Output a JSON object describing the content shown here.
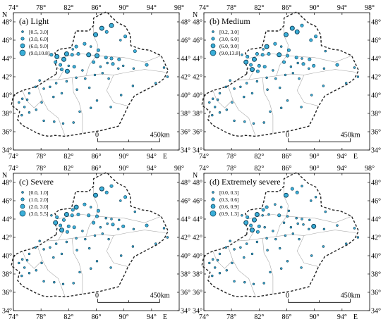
{
  "colors": {
    "dot_fill": "#3aaed8",
    "dot_stroke": "#0d3f57",
    "outline": "#222222",
    "province_line": "#aaaaaa",
    "frame": "#000000"
  },
  "axis": {
    "north_label": "N",
    "east_label": "E",
    "top_ticks": [
      "74°",
      "78°",
      "82°",
      "86°",
      "90°",
      "94°",
      "98°"
    ],
    "bottom_ticks": [
      "74°",
      "78°",
      "82°",
      "86°",
      "90°",
      "94°"
    ],
    "lat_ticks": [
      "48°",
      "46°",
      "44°",
      "42°",
      "40°",
      "38°",
      "36°",
      "34°"
    ]
  },
  "panels": [
    {
      "title": "(a) Light",
      "legend": [
        "[0.5, 3.0]",
        "(3.0, 6.0]",
        "(6.0, 9.0]",
        "(9.0,10.8]"
      ],
      "scale_start": "0",
      "scale_end": "450km"
    },
    {
      "title": "(b) Medium",
      "legend": [
        "[0.2, 3.0]",
        "(3.0, 6.0]",
        "(6.0, 9.0]",
        "(9.0,13.8]"
      ],
      "scale_start": "0",
      "scale_end": "450km"
    },
    {
      "title": "(c) Severe",
      "legend": [
        "[0.0, 1.0]",
        "(1.0, 2.0]",
        "(2.0, 3.0]",
        "(3.0, 5.5]"
      ],
      "scale_start": "0",
      "scale_end": "450km"
    },
    {
      "title": "(d) Extremely severe",
      "legend": [
        "[0.0, 0.3]",
        "(0.3, 0.6]",
        "(0.6, 0.9]",
        "(0.9, 1.3]"
      ],
      "scale_start": "0",
      "scale_end": "450km"
    }
  ],
  "stations": [
    {
      "lon": 86.8,
      "lat": 47.3,
      "c": [
        3,
        3,
        3,
        2
      ]
    },
    {
      "lon": 85.9,
      "lat": 46.6,
      "c": [
        3,
        3,
        3,
        3
      ]
    },
    {
      "lon": 87.5,
      "lat": 46.9,
      "c": [
        2,
        3,
        2,
        2
      ]
    },
    {
      "lon": 88.2,
      "lat": 47.6,
      "c": [
        3,
        2,
        2,
        1
      ]
    },
    {
      "lon": 90.2,
      "lat": 46.4,
      "c": [
        2,
        2,
        2,
        1
      ]
    },
    {
      "lon": 89.5,
      "lat": 46.0,
      "c": [
        1,
        2,
        1,
        1
      ]
    },
    {
      "lon": 84.3,
      "lat": 45.6,
      "c": [
        2,
        2,
        2,
        1
      ]
    },
    {
      "lon": 83.1,
      "lat": 45.3,
      "c": [
        2,
        3,
        3,
        2
      ]
    },
    {
      "lon": 85.2,
      "lat": 45.3,
      "c": [
        1,
        1,
        1,
        1
      ]
    },
    {
      "lon": 82.6,
      "lat": 45.0,
      "c": [
        1,
        1,
        2,
        2
      ]
    },
    {
      "lon": 86.3,
      "lat": 44.9,
      "c": [
        2,
        2,
        2,
        1
      ]
    },
    {
      "lon": 91.6,
      "lat": 44.8,
      "c": [
        2,
        1,
        1,
        1
      ]
    },
    {
      "lon": 79.5,
      "lat": 44.4,
      "c": [
        2,
        1,
        1,
        1
      ]
    },
    {
      "lon": 80.3,
      "lat": 44.2,
      "c": [
        3,
        2,
        2,
        2
      ]
    },
    {
      "lon": 81.7,
      "lat": 44.5,
      "c": [
        3,
        2,
        3,
        3
      ]
    },
    {
      "lon": 82.5,
      "lat": 44.4,
      "c": [
        2,
        2,
        2,
        1
      ]
    },
    {
      "lon": 83.4,
      "lat": 44.5,
      "c": [
        2,
        2,
        2,
        1
      ]
    },
    {
      "lon": 84.9,
      "lat": 44.4,
      "c": [
        3,
        3,
        2,
        2
      ]
    },
    {
      "lon": 86.1,
      "lat": 44.3,
      "c": [
        3,
        2,
        2,
        1
      ]
    },
    {
      "lon": 87.4,
      "lat": 44.1,
      "c": [
        2,
        2,
        1,
        1
      ]
    },
    {
      "lon": 88.2,
      "lat": 44.0,
      "c": [
        2,
        1,
        1,
        1
      ]
    },
    {
      "lon": 89.3,
      "lat": 43.9,
      "c": [
        2,
        2,
        1,
        1
      ]
    },
    {
      "lon": 87.6,
      "lat": 43.5,
      "c": [
        1,
        1,
        1,
        1
      ]
    },
    {
      "lon": 80.1,
      "lat": 43.6,
      "c": [
        2,
        3,
        3,
        3
      ]
    },
    {
      "lon": 80.8,
      "lat": 43.3,
      "c": [
        2,
        2,
        2,
        2
      ]
    },
    {
      "lon": 81.3,
      "lat": 43.9,
      "c": [
        3,
        3,
        2,
        3
      ]
    },
    {
      "lon": 82.0,
      "lat": 43.2,
      "c": [
        1,
        2,
        2,
        2
      ]
    },
    {
      "lon": 81.0,
      "lat": 42.8,
      "c": [
        2,
        3,
        3,
        3
      ]
    },
    {
      "lon": 81.8,
      "lat": 42.6,
      "c": [
        3,
        2,
        2,
        2
      ]
    },
    {
      "lon": 82.8,
      "lat": 43.1,
      "c": [
        2,
        2,
        2,
        1
      ]
    },
    {
      "lon": 84.0,
      "lat": 42.7,
      "c": [
        1,
        1,
        1,
        1
      ]
    },
    {
      "lon": 85.6,
      "lat": 43.6,
      "c": [
        2,
        2,
        2,
        1
      ]
    },
    {
      "lon": 86.6,
      "lat": 43.1,
      "c": [
        1,
        1,
        1,
        1
      ]
    },
    {
      "lon": 88.4,
      "lat": 43.4,
      "c": [
        2,
        2,
        2,
        1
      ]
    },
    {
      "lon": 89.9,
      "lat": 43.2,
      "c": [
        1,
        2,
        2,
        3
      ]
    },
    {
      "lon": 93.3,
      "lat": 43.3,
      "c": [
        2,
        2,
        2,
        1
      ]
    },
    {
      "lon": 95.8,
      "lat": 43.0,
      "c": [
        1,
        1,
        1,
        1
      ]
    },
    {
      "lon": 96.3,
      "lat": 42.0,
      "c": [
        1,
        1,
        1,
        1
      ]
    },
    {
      "lon": 91.4,
      "lat": 42.9,
      "c": [
        1,
        1,
        1,
        1
      ]
    },
    {
      "lon": 89.2,
      "lat": 42.9,
      "c": [
        1,
        1,
        1,
        1
      ]
    },
    {
      "lon": 86.9,
      "lat": 42.4,
      "c": [
        1,
        1,
        1,
        1
      ]
    },
    {
      "lon": 85.8,
      "lat": 42.2,
      "c": [
        1,
        1,
        1,
        1
      ]
    },
    {
      "lon": 84.4,
      "lat": 41.8,
      "c": [
        1,
        1,
        1,
        1
      ]
    },
    {
      "lon": 83.1,
      "lat": 41.9,
      "c": [
        1,
        1,
        1,
        1
      ]
    },
    {
      "lon": 81.7,
      "lat": 41.5,
      "c": [
        1,
        1,
        1,
        1
      ]
    },
    {
      "lon": 80.2,
      "lat": 41.3,
      "c": [
        1,
        1,
        1,
        1
      ]
    },
    {
      "lon": 79.3,
      "lat": 40.9,
      "c": [
        1,
        1,
        1,
        1
      ]
    },
    {
      "lon": 78.4,
      "lat": 40.7,
      "c": [
        1,
        1,
        1,
        1
      ]
    },
    {
      "lon": 77.2,
      "lat": 40.9,
      "c": [
        1,
        1,
        1,
        1
      ]
    },
    {
      "lon": 76.3,
      "lat": 40.2,
      "c": [
        1,
        1,
        1,
        1
      ]
    },
    {
      "lon": 76.0,
      "lat": 39.5,
      "c": [
        1,
        1,
        1,
        1
      ]
    },
    {
      "lon": 75.3,
      "lat": 39.6,
      "c": [
        1,
        1,
        1,
        1
      ]
    },
    {
      "lon": 74.8,
      "lat": 39.2,
      "c": [
        1,
        1,
        1,
        1
      ]
    },
    {
      "lon": 75.6,
      "lat": 38.7,
      "c": [
        1,
        1,
        1,
        1
      ]
    },
    {
      "lon": 75.2,
      "lat": 37.8,
      "c": [
        1,
        1,
        1,
        1
      ]
    },
    {
      "lon": 76.3,
      "lat": 38.1,
      "c": [
        1,
        1,
        1,
        1
      ]
    },
    {
      "lon": 77.3,
      "lat": 38.4,
      "c": [
        1,
        1,
        1,
        1
      ]
    },
    {
      "lon": 78.4,
      "lat": 37.2,
      "c": [
        1,
        1,
        1,
        1
      ]
    },
    {
      "lon": 79.9,
      "lat": 37.1,
      "c": [
        1,
        1,
        1,
        1
      ]
    },
    {
      "lon": 81.2,
      "lat": 36.9,
      "c": [
        1,
        1,
        1,
        1
      ]
    },
    {
      "lon": 82.7,
      "lat": 37.0,
      "c": [
        1,
        1,
        1,
        1
      ]
    },
    {
      "lon": 83.6,
      "lat": 38.2,
      "c": [
        1,
        1,
        1,
        1
      ]
    },
    {
      "lon": 85.2,
      "lat": 38.6,
      "c": [
        1,
        1,
        1,
        1
      ]
    },
    {
      "lon": 86.1,
      "lat": 39.4,
      "c": [
        1,
        1,
        1,
        1
      ]
    },
    {
      "lon": 88.1,
      "lat": 38.7,
      "c": [
        1,
        1,
        1,
        1
      ]
    },
    {
      "lon": 89.6,
      "lat": 40.0,
      "c": [
        1,
        1,
        1,
        1
      ]
    },
    {
      "lon": 91.3,
      "lat": 41.0,
      "c": [
        1,
        1,
        1,
        1
      ]
    },
    {
      "lon": 87.8,
      "lat": 41.8,
      "c": [
        1,
        1,
        1,
        1
      ]
    },
    {
      "lon": 85.0,
      "lat": 40.8,
      "c": [
        1,
        1,
        1,
        1
      ]
    },
    {
      "lon": 83.2,
      "lat": 40.6,
      "c": [
        1,
        1,
        1,
        1
      ]
    },
    {
      "lon": 81.0,
      "lat": 40.2,
      "c": [
        1,
        1,
        1,
        1
      ]
    },
    {
      "lon": 79.8,
      "lat": 39.8,
      "c": [
        1,
        1,
        1,
        1
      ]
    },
    {
      "lon": 78.1,
      "lat": 39.2,
      "c": [
        1,
        1,
        1,
        1
      ]
    },
    {
      "lon": 77.8,
      "lat": 41.6,
      "c": [
        1,
        1,
        1,
        1
      ]
    },
    {
      "lon": 94.6,
      "lat": 41.3,
      "c": [
        1,
        1,
        1,
        1
      ]
    }
  ]
}
